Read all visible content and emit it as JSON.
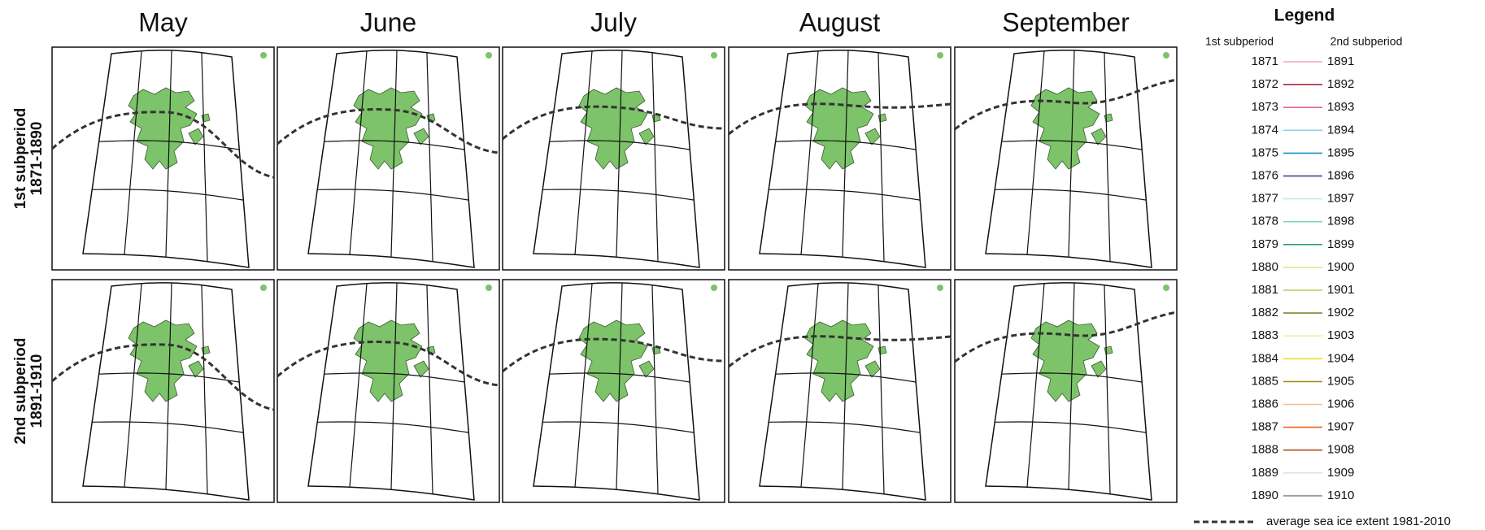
{
  "months": [
    "May",
    "June",
    "July",
    "August",
    "September"
  ],
  "rows": [
    {
      "title": "1st subperiod",
      "subtitle": "1871-1890"
    },
    {
      "title": "2nd subperiod",
      "subtitle": "1891-1910"
    }
  ],
  "legend": {
    "title": "Legend",
    "headers": [
      "1st subperiod",
      "2nd subperiod"
    ],
    "entries": [
      {
        "first": 1871,
        "second": 1891,
        "color": "#f2a5b8"
      },
      {
        "first": 1872,
        "second": 1892,
        "color": "#a8233a"
      },
      {
        "first": 1873,
        "second": 1893,
        "color": "#e8609a"
      },
      {
        "first": 1874,
        "second": 1894,
        "color": "#8fd0e8"
      },
      {
        "first": 1875,
        "second": 1895,
        "color": "#1a8fc8"
      },
      {
        "first": 1876,
        "second": 1896,
        "color": "#2b3d8f"
      },
      {
        "first": 1877,
        "second": 1897,
        "color": "#c8e8e8"
      },
      {
        "first": 1878,
        "second": 1898,
        "color": "#7fd4b8"
      },
      {
        "first": 1879,
        "second": 1899,
        "color": "#2a9a7a"
      },
      {
        "first": 1880,
        "second": 1900,
        "color": "#d8e890"
      },
      {
        "first": 1881,
        "second": 1901,
        "color": "#b8d060"
      },
      {
        "first": 1882,
        "second": 1902,
        "color": "#7a8a30"
      },
      {
        "first": 1883,
        "second": 1903,
        "color": "#f0f0a0"
      },
      {
        "first": 1884,
        "second": 1904,
        "color": "#e8e020"
      },
      {
        "first": 1885,
        "second": 1905,
        "color": "#a09020"
      },
      {
        "first": 1886,
        "second": 1906,
        "color": "#f8c090"
      },
      {
        "first": 1887,
        "second": 1907,
        "color": "#f06020"
      },
      {
        "first": 1888,
        "second": 1908,
        "color": "#b05020"
      },
      {
        "first": 1889,
        "second": 1909,
        "color": "#e0e0e0"
      },
      {
        "first": 1890,
        "second": 1910,
        "color": "#909090"
      }
    ],
    "ice_extent": "average sea ice extent 1981-2010"
  }
}
